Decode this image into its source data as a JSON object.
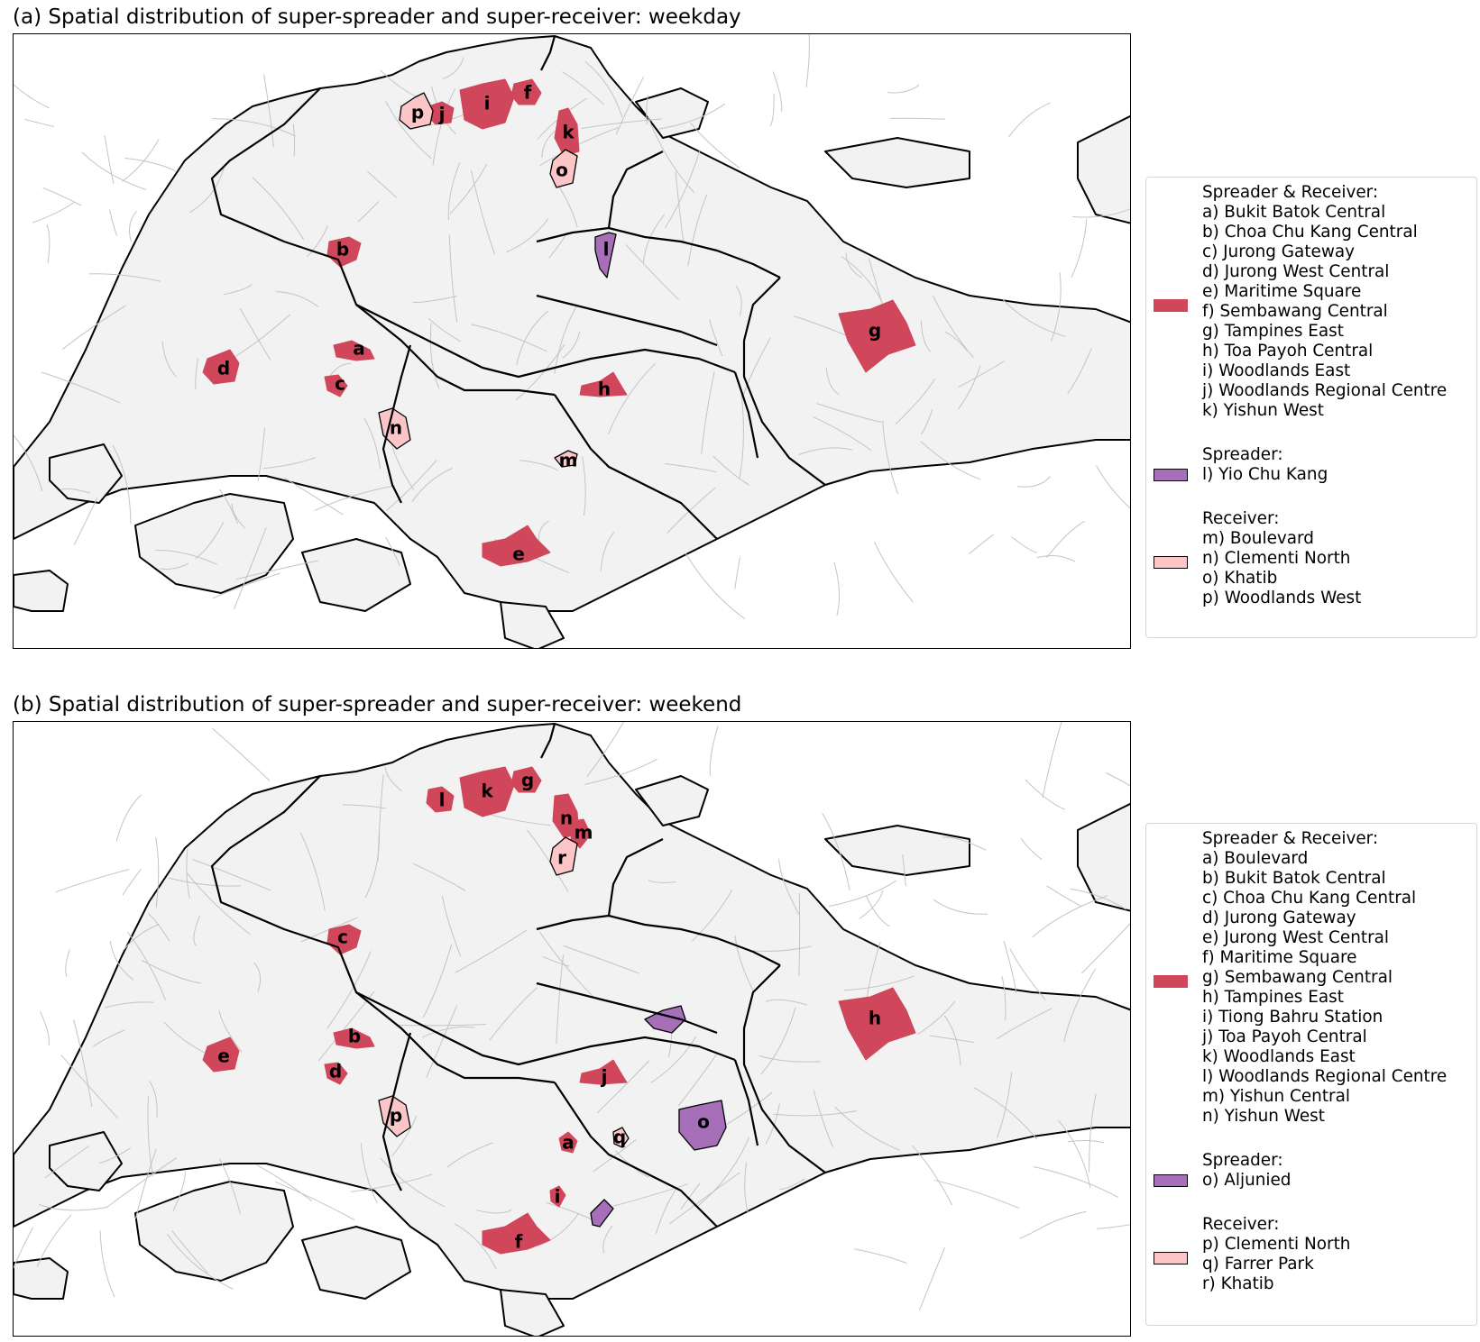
{
  "colors": {
    "spreader_receiver": "#d0465a",
    "spreader": "#a66fb8",
    "receiver": "#fcc6c8",
    "land": "#f2f2f2",
    "subzone_lines": "#c4c4c4",
    "region_lines": "#000000"
  },
  "panels": [
    {
      "id": "weekday",
      "title": "(a) Spatial distribution of super-spreader and super-receiver: weekday",
      "legend": {
        "spreader_receiver_heading": "Spreader & Receiver:",
        "spreader_receiver_items": [
          "a) Bukit Batok Central",
          "b) Choa Chu Kang Central",
          "c) Jurong Gateway",
          "d) Jurong West Central",
          "e) Maritime Square",
          "f) Sembawang Central",
          "g) Tampines East",
          "h) Toa Payoh Central",
          "i) Woodlands East",
          "j) Woodlands Regional Centre",
          "k) Yishun West"
        ],
        "spreader_heading": "Spreader:",
        "spreader_items": [
          "l) Yio Chu Kang"
        ],
        "receiver_heading": "Receiver:",
        "receiver_items": [
          "m) Boulevard",
          "n) Clementi North",
          "o) Khatib",
          "p) Woodlands West"
        ]
      },
      "regions": [
        {
          "label": "a",
          "category": "spreader_receiver"
        },
        {
          "label": "b",
          "category": "spreader_receiver"
        },
        {
          "label": "c",
          "category": "spreader_receiver"
        },
        {
          "label": "d",
          "category": "spreader_receiver"
        },
        {
          "label": "e",
          "category": "spreader_receiver"
        },
        {
          "label": "f",
          "category": "spreader_receiver"
        },
        {
          "label": "g",
          "category": "spreader_receiver"
        },
        {
          "label": "h",
          "category": "spreader_receiver"
        },
        {
          "label": "i",
          "category": "spreader_receiver"
        },
        {
          "label": "j",
          "category": "spreader_receiver"
        },
        {
          "label": "k",
          "category": "spreader_receiver"
        },
        {
          "label": "l",
          "category": "spreader"
        },
        {
          "label": "m",
          "category": "receiver"
        },
        {
          "label": "n",
          "category": "receiver"
        },
        {
          "label": "o",
          "category": "receiver"
        },
        {
          "label": "p",
          "category": "receiver"
        }
      ]
    },
    {
      "id": "weekend",
      "title": "(b) Spatial distribution of super-spreader and super-receiver: weekend",
      "legend": {
        "spreader_receiver_heading": "Spreader & Receiver:",
        "spreader_receiver_items": [
          "a) Boulevard",
          "b) Bukit Batok Central",
          "c) Choa Chu Kang Central",
          "d) Jurong Gateway",
          "e) Jurong West Central",
          "f) Maritime Square",
          "g) Sembawang Central",
          "h) Tampines East",
          "i) Tiong Bahru Station",
          "j) Toa Payoh Central",
          "k) Woodlands East",
          "l) Woodlands Regional Centre",
          "m) Yishun Central",
          "n) Yishun West"
        ],
        "spreader_heading": "Spreader:",
        "spreader_items": [
          "o) Aljunied"
        ],
        "receiver_heading": "Receiver:",
        "receiver_items": [
          "p) Clementi North",
          "q) Farrer Park",
          "r) Khatib"
        ]
      },
      "regions": [
        {
          "label": "a",
          "category": "spreader_receiver"
        },
        {
          "label": "b",
          "category": "spreader_receiver"
        },
        {
          "label": "c",
          "category": "spreader_receiver"
        },
        {
          "label": "d",
          "category": "spreader_receiver"
        },
        {
          "label": "e",
          "category": "spreader_receiver"
        },
        {
          "label": "f",
          "category": "spreader_receiver"
        },
        {
          "label": "g",
          "category": "spreader_receiver"
        },
        {
          "label": "h",
          "category": "spreader_receiver"
        },
        {
          "label": "i",
          "category": "spreader_receiver"
        },
        {
          "label": "j",
          "category": "spreader_receiver"
        },
        {
          "label": "k",
          "category": "spreader_receiver"
        },
        {
          "label": "l",
          "category": "spreader_receiver"
        },
        {
          "label": "m",
          "category": "spreader_receiver"
        },
        {
          "label": "n",
          "category": "spreader_receiver"
        },
        {
          "label": "o",
          "category": "spreader"
        },
        {
          "label": "unlabeled-spreader",
          "category": "spreader"
        },
        {
          "label": "p",
          "category": "receiver"
        },
        {
          "label": "q",
          "category": "receiver"
        },
        {
          "label": "r",
          "category": "receiver"
        }
      ]
    }
  ]
}
